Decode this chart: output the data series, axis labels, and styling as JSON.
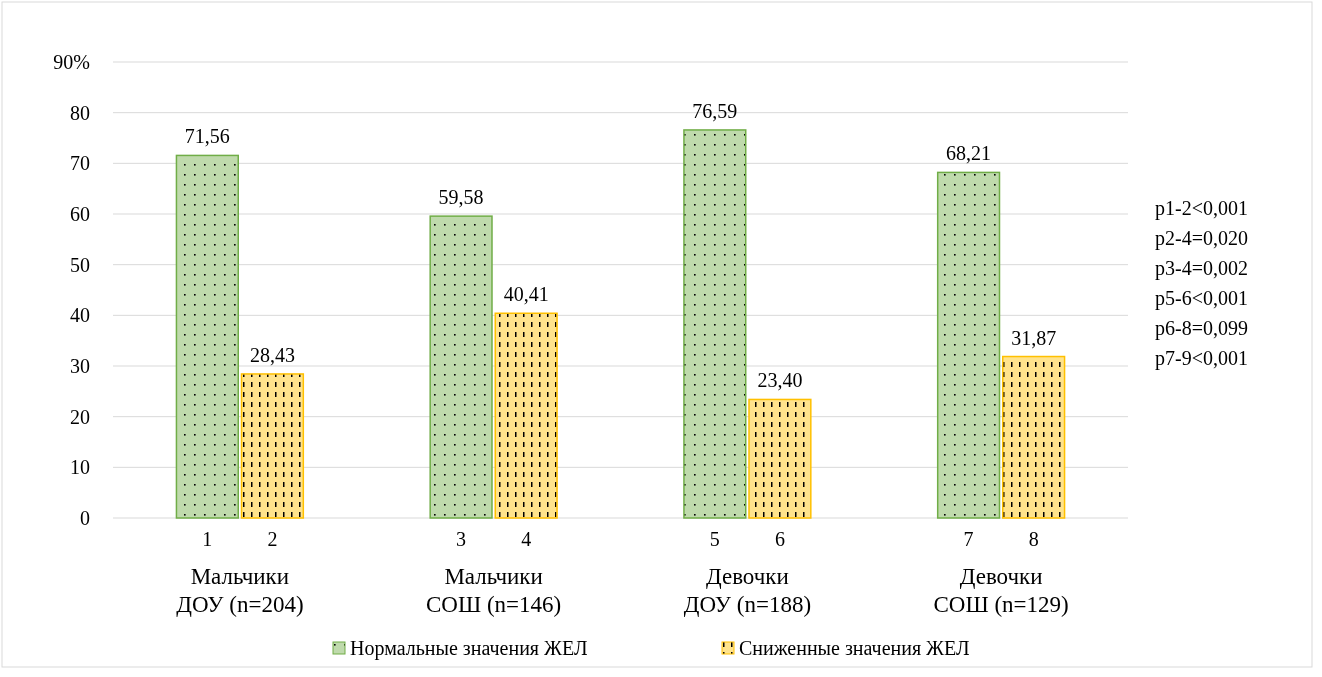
{
  "chart_data": {
    "type": "bar",
    "categories": [
      "Мальчики ДОУ (n=204)",
      "Мальчики СОШ (n=146)",
      "Девочки ДОУ (n=188)",
      "Девочки СОШ (n=129)"
    ],
    "series": [
      {
        "name": "Нормальные значения ЖЕЛ",
        "color": "#70ad47",
        "values": [
          71.56,
          59.58,
          76.59,
          68.21
        ],
        "value_labels": [
          "71,56",
          "59,58",
          "76,59",
          "68,21"
        ]
      },
      {
        "name": "Сниженные значения ЖЕЛ",
        "color": "#ffc000",
        "values": [
          28.43,
          40.41,
          23.4,
          31.87
        ],
        "value_labels": [
          "28,43",
          "40,41",
          "23,40",
          "31,87"
        ]
      }
    ],
    "ylim": [
      0,
      90
    ],
    "yticks": [
      0,
      10,
      20,
      30,
      40,
      50,
      60,
      70,
      80,
      {
        "value": 90,
        "label": "90%"
      }
    ],
    "grid": "y",
    "legend": "bottom",
    "annotations": [
      {
        "text": "1",
        "x": "Мальчики ДОУ (n=204)",
        "y": 0
      },
      {
        "text": "2",
        "x": "Мальчики ДОУ (n=204)",
        "y": 0
      },
      {
        "text": "3",
        "x": "Мальчики СОШ (n=146)",
        "y": 0
      },
      {
        "text": "4",
        "x": "Мальчики СОШ (n=146)",
        "y": 0
      },
      {
        "text": "5",
        "x": "Девочки ДОУ (n=188)",
        "y": 0
      },
      {
        "text": "6",
        "x": "Девочки ДОУ (n=188)",
        "y": 0
      },
      {
        "text": "7",
        "x": "Девочки СОШ (n=129)",
        "y": 0
      },
      {
        "text": "8",
        "x": "Девочки СОШ (n=129)",
        "y": 0
      },
      "p1-2<0,001",
      "p2-4=0,020",
      "p3-4=0,002",
      "p5-6<0,001",
      "p6-8=0,099",
      "p7-9<0,001"
    ]
  }
}
